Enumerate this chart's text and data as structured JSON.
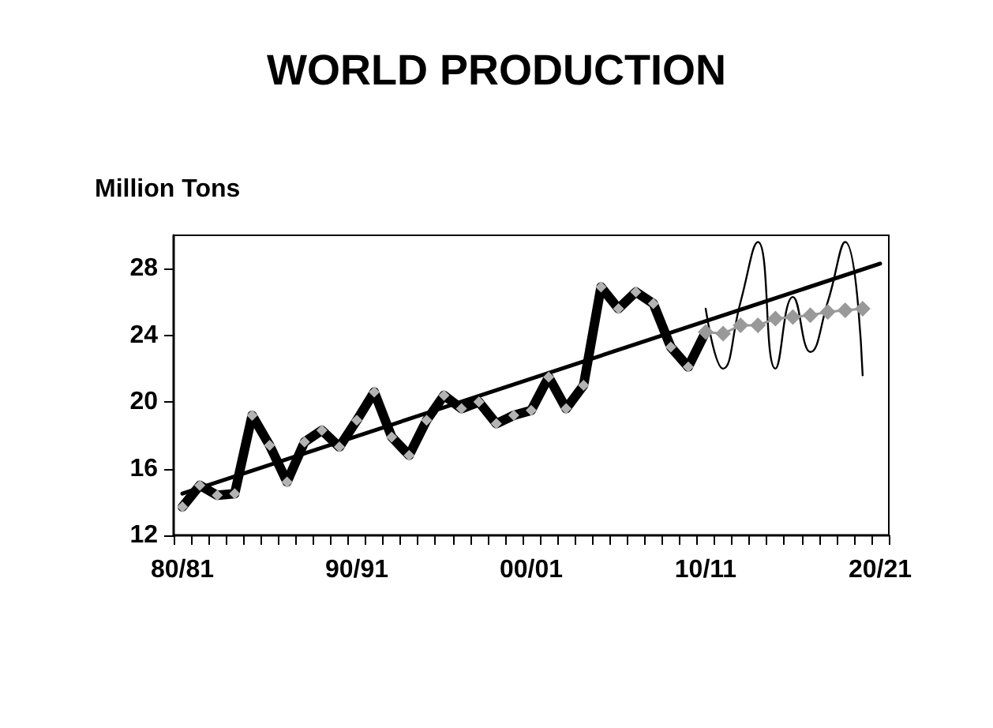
{
  "chart_data": {
    "type": "line",
    "title": "WORLD PRODUCTION",
    "ylabel": "Million Tons",
    "categories": [
      "80/81",
      null,
      null,
      null,
      null,
      null,
      null,
      null,
      null,
      null,
      "90/91",
      null,
      null,
      null,
      null,
      null,
      null,
      null,
      null,
      null,
      "00/01",
      null,
      null,
      null,
      null,
      null,
      null,
      null,
      null,
      null,
      "10/11",
      null,
      null,
      null,
      null,
      null,
      null,
      null,
      null,
      null,
      "20/21"
    ],
    "ylim": [
      12,
      30
    ],
    "yticks": [
      12,
      16,
      20,
      24,
      28
    ],
    "grid": false,
    "series": [
      {
        "color": "#000000",
        "marker": "diamond",
        "values": [
          13.7,
          15.0,
          14.4,
          14.5,
          19.2,
          17.4,
          15.2,
          17.6,
          18.3,
          17.3,
          18.9,
          20.6,
          17.9,
          16.8,
          18.9,
          20.4,
          19.6,
          20.0,
          18.7,
          19.2,
          19.5,
          21.5,
          19.6,
          21.0,
          26.9,
          25.6,
          26.6,
          25.9,
          23.3,
          22.1,
          24.2,
          null,
          null,
          null,
          null,
          null,
          null,
          null,
          null,
          null,
          null
        ]
      },
      {
        "color": "#999999",
        "marker": "diamond",
        "values": [
          null,
          null,
          null,
          null,
          null,
          null,
          null,
          null,
          null,
          null,
          null,
          null,
          null,
          null,
          null,
          null,
          null,
          null,
          null,
          null,
          null,
          null,
          null,
          null,
          null,
          null,
          null,
          null,
          null,
          null,
          24.2,
          24.1,
          24.6,
          24.6,
          25.0,
          25.1,
          25.2,
          25.4,
          25.5,
          25.6,
          null
        ]
      },
      {
        "color": "#000000",
        "marker": "none",
        "values": [
          null,
          null,
          null,
          null,
          null,
          null,
          null,
          null,
          null,
          null,
          null,
          null,
          null,
          null,
          null,
          null,
          null,
          null,
          null,
          null,
          null,
          null,
          null,
          null,
          null,
          null,
          null,
          null,
          null,
          null,
          25.6,
          22.0,
          26.0,
          29.6,
          22.0,
          26.3,
          23.0,
          26.0,
          29.6,
          21.6,
          null
        ]
      },
      {
        "color": "#000000",
        "marker": "none",
        "values": [
          14.5,
          null,
          null,
          null,
          null,
          null,
          null,
          null,
          null,
          null,
          null,
          null,
          null,
          null,
          null,
          null,
          null,
          null,
          null,
          null,
          null,
          null,
          null,
          null,
          null,
          null,
          null,
          null,
          null,
          null,
          null,
          null,
          null,
          null,
          null,
          null,
          null,
          null,
          null,
          null,
          28.3
        ]
      }
    ]
  }
}
